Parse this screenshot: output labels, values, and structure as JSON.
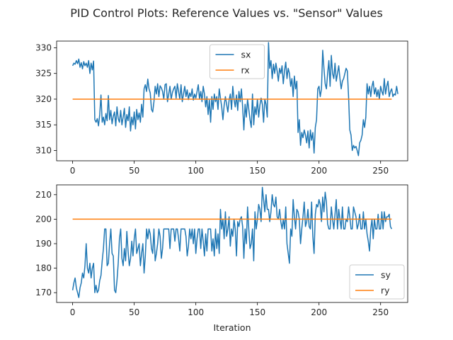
{
  "chart_data": {
    "title": "PID Control Plots: Reference Values vs. \"Sensor\" Values",
    "subplots": [
      {
        "type": "line",
        "xlabel": "",
        "ylabel": "",
        "xlim": [
          -13,
          272
        ],
        "ylim": [
          308,
          331.3
        ],
        "xticks": [
          0,
          50,
          100,
          150,
          200,
          250
        ],
        "yticks": [
          310,
          315,
          320,
          325,
          330
        ],
        "legend_position": "top-center",
        "series": [
          {
            "name": "sx",
            "color": "#1f77b4",
            "values": [
              326.5,
              327.0,
              326.8,
              327.5,
              326.9,
              327.8,
              326.2,
              327.1,
              325.9,
              327.3,
              326.5,
              327.0,
              326.2,
              327.5,
              325.0,
              327.0,
              325.7,
              327.4,
              316.0,
              315.5,
              316.2,
              314.8,
              317.0,
              320.8,
              315.5,
              316.5,
              315.0,
              317.2,
              315.8,
              320.7,
              316.0,
              317.8,
              315.2,
              316.7,
              317.5,
              314.8,
              318.5,
              316.2,
              315.5,
              317.8,
              315.0,
              316.5,
              318.2,
              314.5,
              317.0,
              315.8,
              318.5,
              313.8,
              316.5,
              315.0,
              317.5,
              314.2,
              318.0,
              316.0,
              317.3,
              315.5,
              319.0,
              316.5,
              322.0,
              322.8,
              321.5,
              323.9,
              322.0,
              321.2,
              318.0,
              317.5,
              319.5,
              322.5,
              321.0,
              323.0,
              320.5,
              322.6,
              322.2,
              321.5,
              320.0,
              322.8,
              323.0,
              319.5,
              321.0,
              322.5,
              320.0,
              321.3,
              322.0,
              322.5,
              320.2,
              323.0,
              321.5,
              320.0,
              322.8,
              319.5,
              321.0,
              322.5,
              320.5,
              321.8,
              319.9,
              321.2,
              320.5,
              322.0,
              319.8,
              321.0,
              320.2,
              321.5,
              322.8,
              320.0,
              321.5,
              319.5,
              322.5,
              321.0,
              318.5,
              320.5,
              317.0,
              319.8,
              315.5,
              320.5,
              318.0,
              321.0,
              319.5,
              320.5,
              318.0,
              322.0,
              320.2,
              318.5,
              316.0,
              318.8,
              320.5,
              319.0,
              317.5,
              319.8,
              321.0,
              318.0,
              322.5,
              320.0,
              318.5,
              320.8,
              317.8,
              321.5,
              319.5,
              322.0,
              318.5,
              314.0,
              319.0,
              316.5,
              320.0,
              318.0,
              316.0,
              314.5,
              321.0,
              315.0,
              318.5,
              317.0,
              320.0,
              316.5,
              318.8,
              320.2,
              319.0,
              315.5,
              320.0,
              319.0,
              316.5,
              331.0,
              326.0,
              327.5,
              324.0,
              326.8,
              325.0,
              327.0,
              325.5,
              323.5,
              326.0,
              325.0,
              326.5,
              323.0,
              325.5,
              327.2,
              324.0,
              326.0,
              325.0,
              322.5,
              324.0,
              320.5,
              324.5,
              322.0,
              323.5,
              313.5,
              316.0,
              311.0,
              313.5,
              312.5,
              314.0,
              313.0,
              311.5,
              313.8,
              310.5,
              314.0,
              312.0,
              313.5,
              309.5,
              314.5,
              316.0,
              322.0,
              322.5,
              320.5,
              322.0,
              329.5,
              326.0,
              323.0,
              322.0,
              325.0,
              327.5,
              322.5,
              328.5,
              325.0,
              324.0,
              327.0,
              323.5,
              325.0,
              326.5,
              324.0,
              322.0,
              323.5,
              324.0,
              325.0,
              326.0,
              325.5,
              320.5,
              314.0,
              313.0,
              310.0,
              311.0,
              310.5,
              310.8,
              310.0,
              309.0,
              311.5,
              312.0,
              313.0,
              316.0,
              314.5,
              316.5,
              323.0,
              321.0,
              322.5,
              320.5,
              322.5,
              323.5,
              321.0,
              322.2,
              320.5,
              321.8,
              320.0,
              322.5,
              321.5,
              320.8,
              324.0,
              321.0,
              322.5,
              323.5,
              320.5,
              321.5,
              322.0,
              320.5,
              321.0,
              320.8,
              322.5,
              321.0
            ]
          },
          {
            "name": "rx",
            "color": "#ff7f0e",
            "values": [
              320,
              320
            ]
          }
        ]
      },
      {
        "type": "line",
        "xlabel": "Iteration",
        "ylabel": "",
        "xlim": [
          -13,
          272
        ],
        "ylim": [
          166,
          214
        ],
        "xticks": [
          0,
          50,
          100,
          150,
          200,
          250
        ],
        "yticks": [
          170,
          180,
          190,
          200,
          210
        ],
        "legend_position": "lower-right",
        "series": [
          {
            "name": "sy",
            "color": "#1f77b4",
            "values": [
              171,
              174,
              176,
              172,
              170,
              168,
              172,
              174,
              178,
              176,
              181,
              190,
              180,
              178,
              182,
              176,
              180,
              182,
              170,
              173,
              170,
              171,
              175,
              177,
              183,
              188,
              196,
              196,
              181,
              182,
              190,
              196,
              186,
              185,
              171,
              170,
              175,
              182,
              192,
              196,
              184,
              181,
              188,
              183,
              195,
              187,
              181,
              184,
              191,
              185,
              192,
              196,
              186,
              188,
              190,
              181,
              186,
              190,
              178,
              185,
              196,
              192,
              196,
              194,
              188,
              186,
              196,
              183,
              186,
              190,
              196,
              193,
              184,
              188,
              196,
              196,
              196,
              196,
              196,
              188,
              196,
              196,
              196,
              191,
              196,
              196,
              192,
              187,
              196,
              196,
              196,
              196,
              193,
              185,
              189,
              196,
              192,
              196,
              190,
              196,
              186,
              192,
              196,
              196,
              188,
              196,
              191,
              185,
              194,
              187,
              196,
              196,
              196,
              187,
              192,
              185,
              196,
              188,
              194,
              186,
              204,
              196,
              200,
              192,
              203,
              193,
              196,
              201,
              189,
              196,
              193,
              200,
              196,
              185,
              199,
              197,
              200,
              201,
              197,
              184,
              196,
              190,
              205,
              196,
              188,
              190,
              196,
              183,
              203,
              196,
              200,
              206,
              204,
              199,
              213,
              208,
              203,
              210,
              204,
              204,
              199,
              203,
              210,
              206,
              205,
              209,
              201,
              200,
              204,
              199,
              196,
              200,
              196,
              205,
              190,
              186,
              182,
              196,
              193,
              208,
              201,
              196,
              204,
              203,
              200,
              190,
              196,
              201,
              207,
              197,
              199,
              204,
              197,
              196,
              207,
              193,
              186,
              202,
              206,
              205,
              208,
              206,
              199,
              209,
              203,
              211,
              207,
              198,
              196,
              196,
              205,
              200,
              196,
              202,
              208,
              196,
              204,
              200,
              196,
              205,
              196,
              196,
              200,
              199,
              205,
              201,
              196,
              196,
              205,
              203,
              201,
              196,
              198,
              202,
              196,
              196,
              203,
              196,
              200,
              194,
              191,
              187,
              196,
              200,
              192,
              200,
              196,
              196,
              202,
              196,
              196,
              203,
              196,
              203,
              199,
              201,
              201,
              202,
              197,
              196
            ]
          },
          {
            "name": "ry",
            "color": "#ff7f0e",
            "values": [
              200,
              200
            ]
          }
        ]
      }
    ]
  }
}
